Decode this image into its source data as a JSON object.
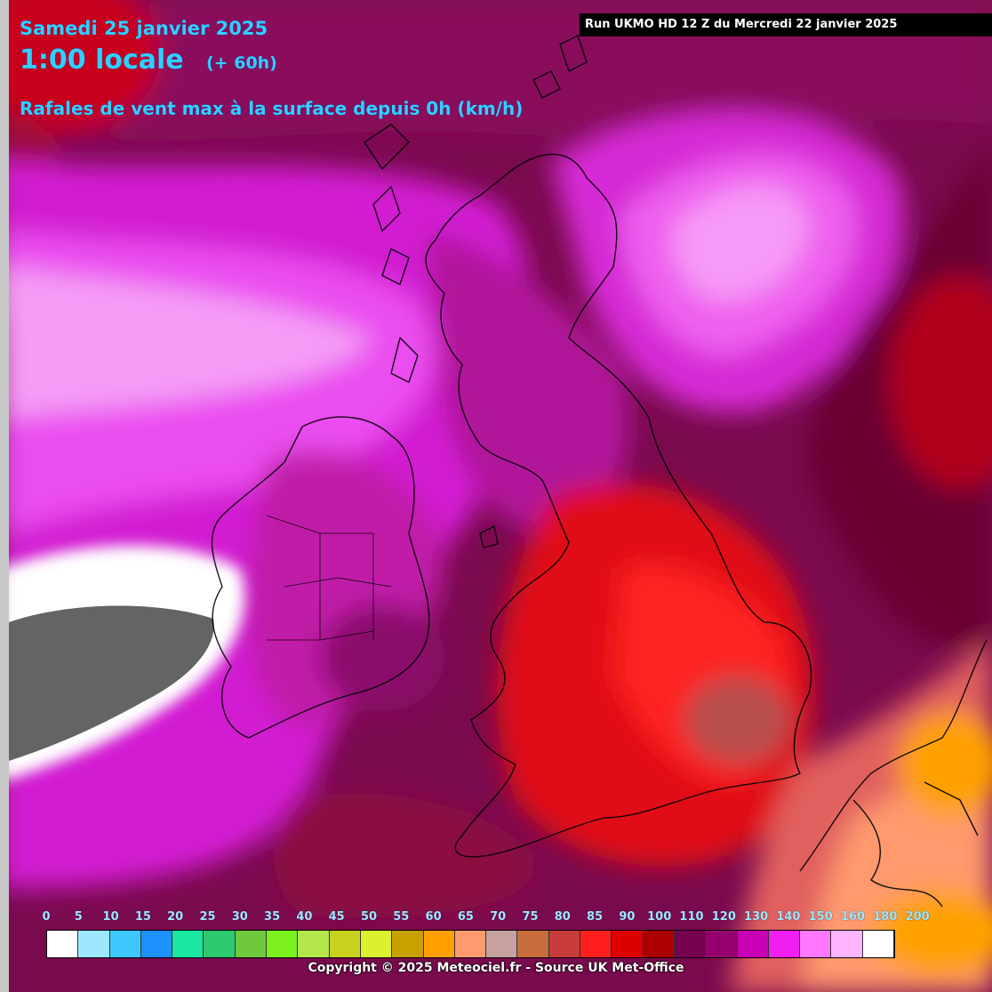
{
  "header": {
    "date": "Samedi 25 janvier 2025",
    "time": "1:00 locale",
    "offset": "(+ 60h)",
    "parameter": "Rafales de vent max à la surface depuis 0h (km/h)",
    "run": "Run UKMO HD 12 Z du Mercredi 22 janvier 2025"
  },
  "legend": {
    "ticks": [
      "0",
      "5",
      "10",
      "15",
      "20",
      "25",
      "30",
      "35",
      "40",
      "45",
      "50",
      "55",
      "60",
      "65",
      "70",
      "75",
      "80",
      "85",
      "90",
      "100",
      "110",
      "120",
      "130",
      "140",
      "150",
      "160",
      "180",
      "200"
    ],
    "colors": [
      "#ffffff",
      "#9fe7ff",
      "#3fc8ff",
      "#1e90ff",
      "#19e6a0",
      "#2ec86e",
      "#6ec83c",
      "#7cf01e",
      "#b4e64b",
      "#c8d21e",
      "#dcf032",
      "#c8a000",
      "#ffa000",
      "#ff9a6e",
      "#c8a0a0",
      "#c86e3c",
      "#c83c3c",
      "#ff1e1e",
      "#dc0000",
      "#aa0000",
      "#780050",
      "#96006e",
      "#c800b4",
      "#f01ef0",
      "#ff78ff",
      "#ffb4ff",
      "#ffffff"
    ]
  },
  "copyright": "Copyright © 2025 Meteociel.fr - Source UK Met-Office"
}
